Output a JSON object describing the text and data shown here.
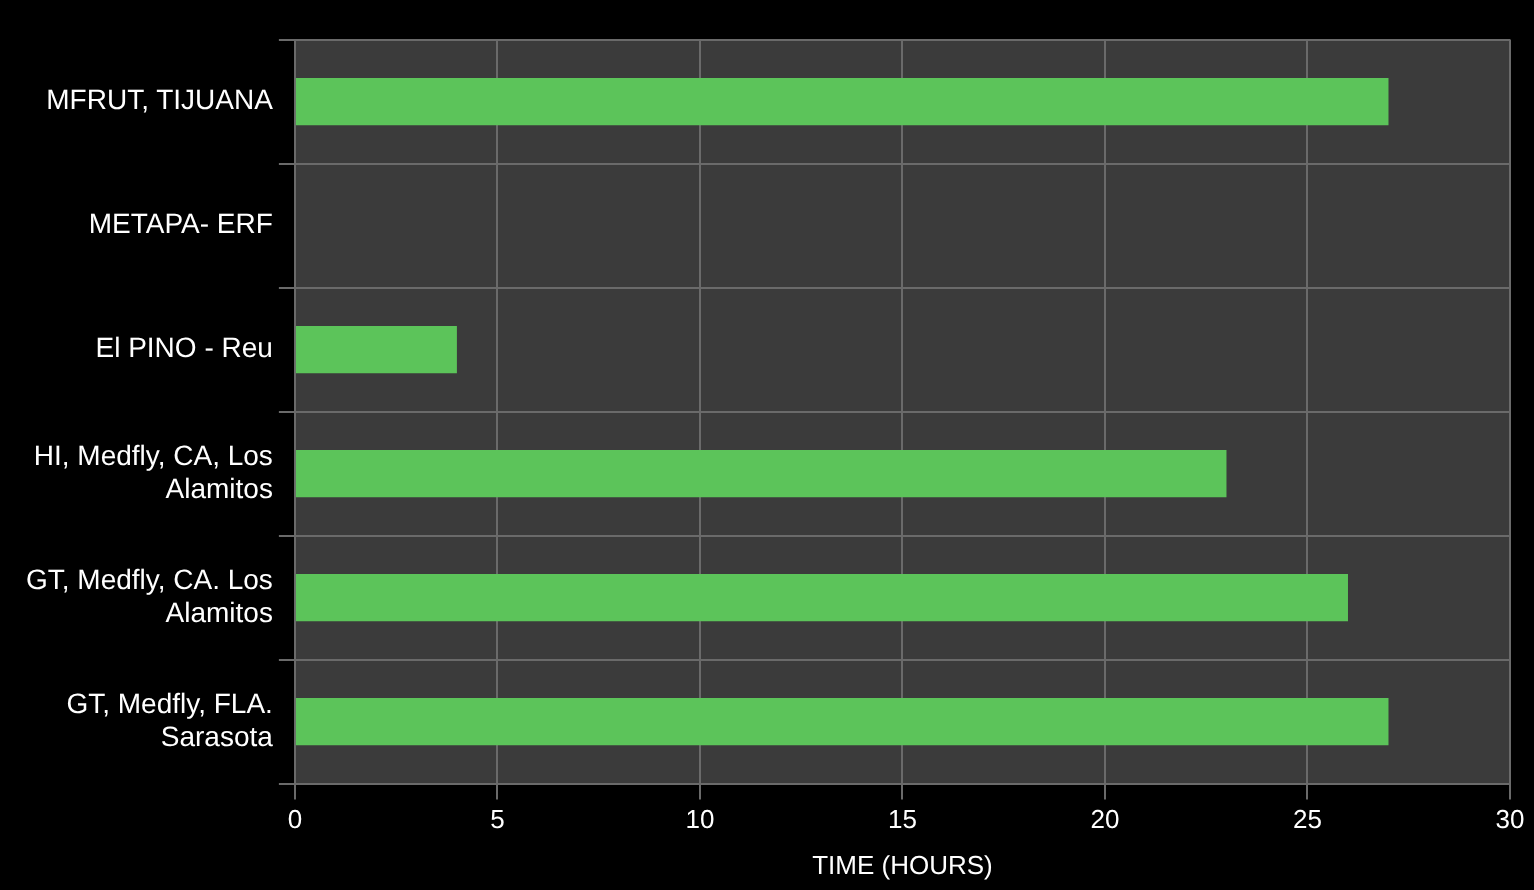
{
  "chart_data": {
    "type": "bar",
    "orientation": "horizontal",
    "xlabel": "TIME (HOURS)",
    "categories": [
      "MFRUT, TIJUANA",
      "METAPA- ERF",
      "El PINO - Reu",
      "HI, Medfly, CA, Los Alamitos",
      "GT, Medfly, CA. Los Alamitos",
      "GT, Medfly, FLA. Sarasota"
    ],
    "values": [
      27,
      null,
      4,
      23,
      26,
      27
    ],
    "color": "#5cc45a",
    "xlim": [
      0,
      30
    ],
    "xticks": [
      0,
      5,
      10,
      15,
      20,
      25,
      30
    ],
    "grid": true,
    "legend": false
  }
}
